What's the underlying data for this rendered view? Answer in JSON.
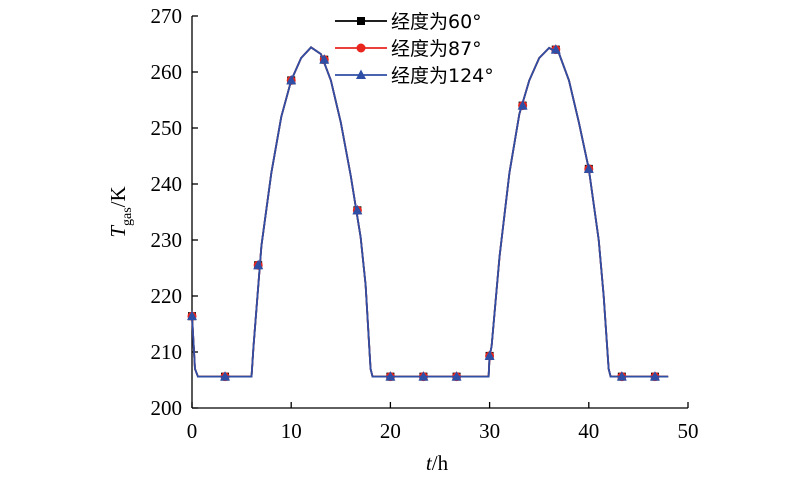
{
  "chart_data": {
    "type": "line",
    "ylabel": {
      "symbol": "T",
      "subscript": "gas",
      "unit": "/K"
    },
    "xlabel": {
      "symbol": "t",
      "unit": "/h"
    },
    "xlim": [
      0,
      50
    ],
    "xticks": [
      0,
      10,
      20,
      30,
      40,
      50
    ],
    "ylim": [
      200,
      270
    ],
    "yticks": [
      200,
      210,
      220,
      230,
      240,
      250,
      260,
      270
    ],
    "x": [
      0,
      0.3,
      0.6,
      6,
      6.2,
      7,
      8,
      9,
      10,
      11,
      12,
      13,
      14,
      15,
      16,
      17,
      17.5,
      18,
      18.2,
      29.9,
      30,
      30.2,
      31,
      32,
      33,
      34,
      35,
      36,
      37,
      38,
      39,
      40,
      41,
      41.5,
      42,
      42.2,
      48
    ],
    "marker_x": [
      0,
      3.33,
      6.67,
      10,
      13.33,
      16.67,
      20,
      23.33,
      26.67,
      30,
      33.33,
      36.67,
      40,
      43.33,
      46.67
    ],
    "series": [
      {
        "name": "经度为60°",
        "color": "#000000",
        "marker": "square",
        "values": [
          216.5,
          207,
          205.6,
          205.6,
          211,
          229,
          242,
          252,
          258.5,
          262.5,
          264.4,
          263.2,
          258.5,
          251,
          241.5,
          230.5,
          222,
          207,
          205.6,
          205.6,
          209.3,
          211,
          227,
          242,
          252.5,
          258.5,
          262.5,
          264.3,
          263.3,
          258.5,
          251,
          242.7,
          230,
          220,
          207,
          205.6,
          205.6
        ],
        "marker_values": [
          216.4,
          205.6,
          225.5,
          258.5,
          262.2,
          235.3,
          205.6,
          205.6,
          205.6,
          209.3,
          254,
          264,
          242.7,
          205.6,
          205.6
        ]
      },
      {
        "name": "经度为87°",
        "color": "#e8261e",
        "marker": "circle",
        "values": [
          216.5,
          207,
          205.6,
          205.6,
          211,
          229,
          242,
          252,
          258.5,
          262.5,
          264.4,
          263.2,
          258.5,
          251,
          241.5,
          230.5,
          222,
          207,
          205.6,
          205.6,
          209.3,
          211,
          227,
          242,
          252.5,
          258.5,
          262.5,
          264.3,
          263.3,
          258.5,
          251,
          242.7,
          230,
          220,
          207,
          205.6,
          205.6
        ],
        "marker_values": [
          216.4,
          205.6,
          225.5,
          258.5,
          262.2,
          235.3,
          205.6,
          205.6,
          205.6,
          209.3,
          254,
          264,
          242.7,
          205.6,
          205.6
        ]
      },
      {
        "name": "经度为124°",
        "color": "#2f4fa6",
        "marker": "triangle",
        "values": [
          216.5,
          207,
          205.6,
          205.6,
          211,
          229,
          242,
          252,
          258.5,
          262.5,
          264.4,
          263.2,
          258.5,
          251,
          241.5,
          230.5,
          222,
          207,
          205.6,
          205.6,
          209.3,
          211,
          227,
          242,
          252.5,
          258.5,
          262.5,
          264.3,
          263.3,
          258.5,
          251,
          242.7,
          230,
          220,
          207,
          205.6,
          205.6
        ],
        "marker_values": [
          216.4,
          205.6,
          225.5,
          258.5,
          262.2,
          235.3,
          205.6,
          205.6,
          205.6,
          209.3,
          254,
          264,
          242.7,
          205.6,
          205.6
        ]
      }
    ]
  }
}
